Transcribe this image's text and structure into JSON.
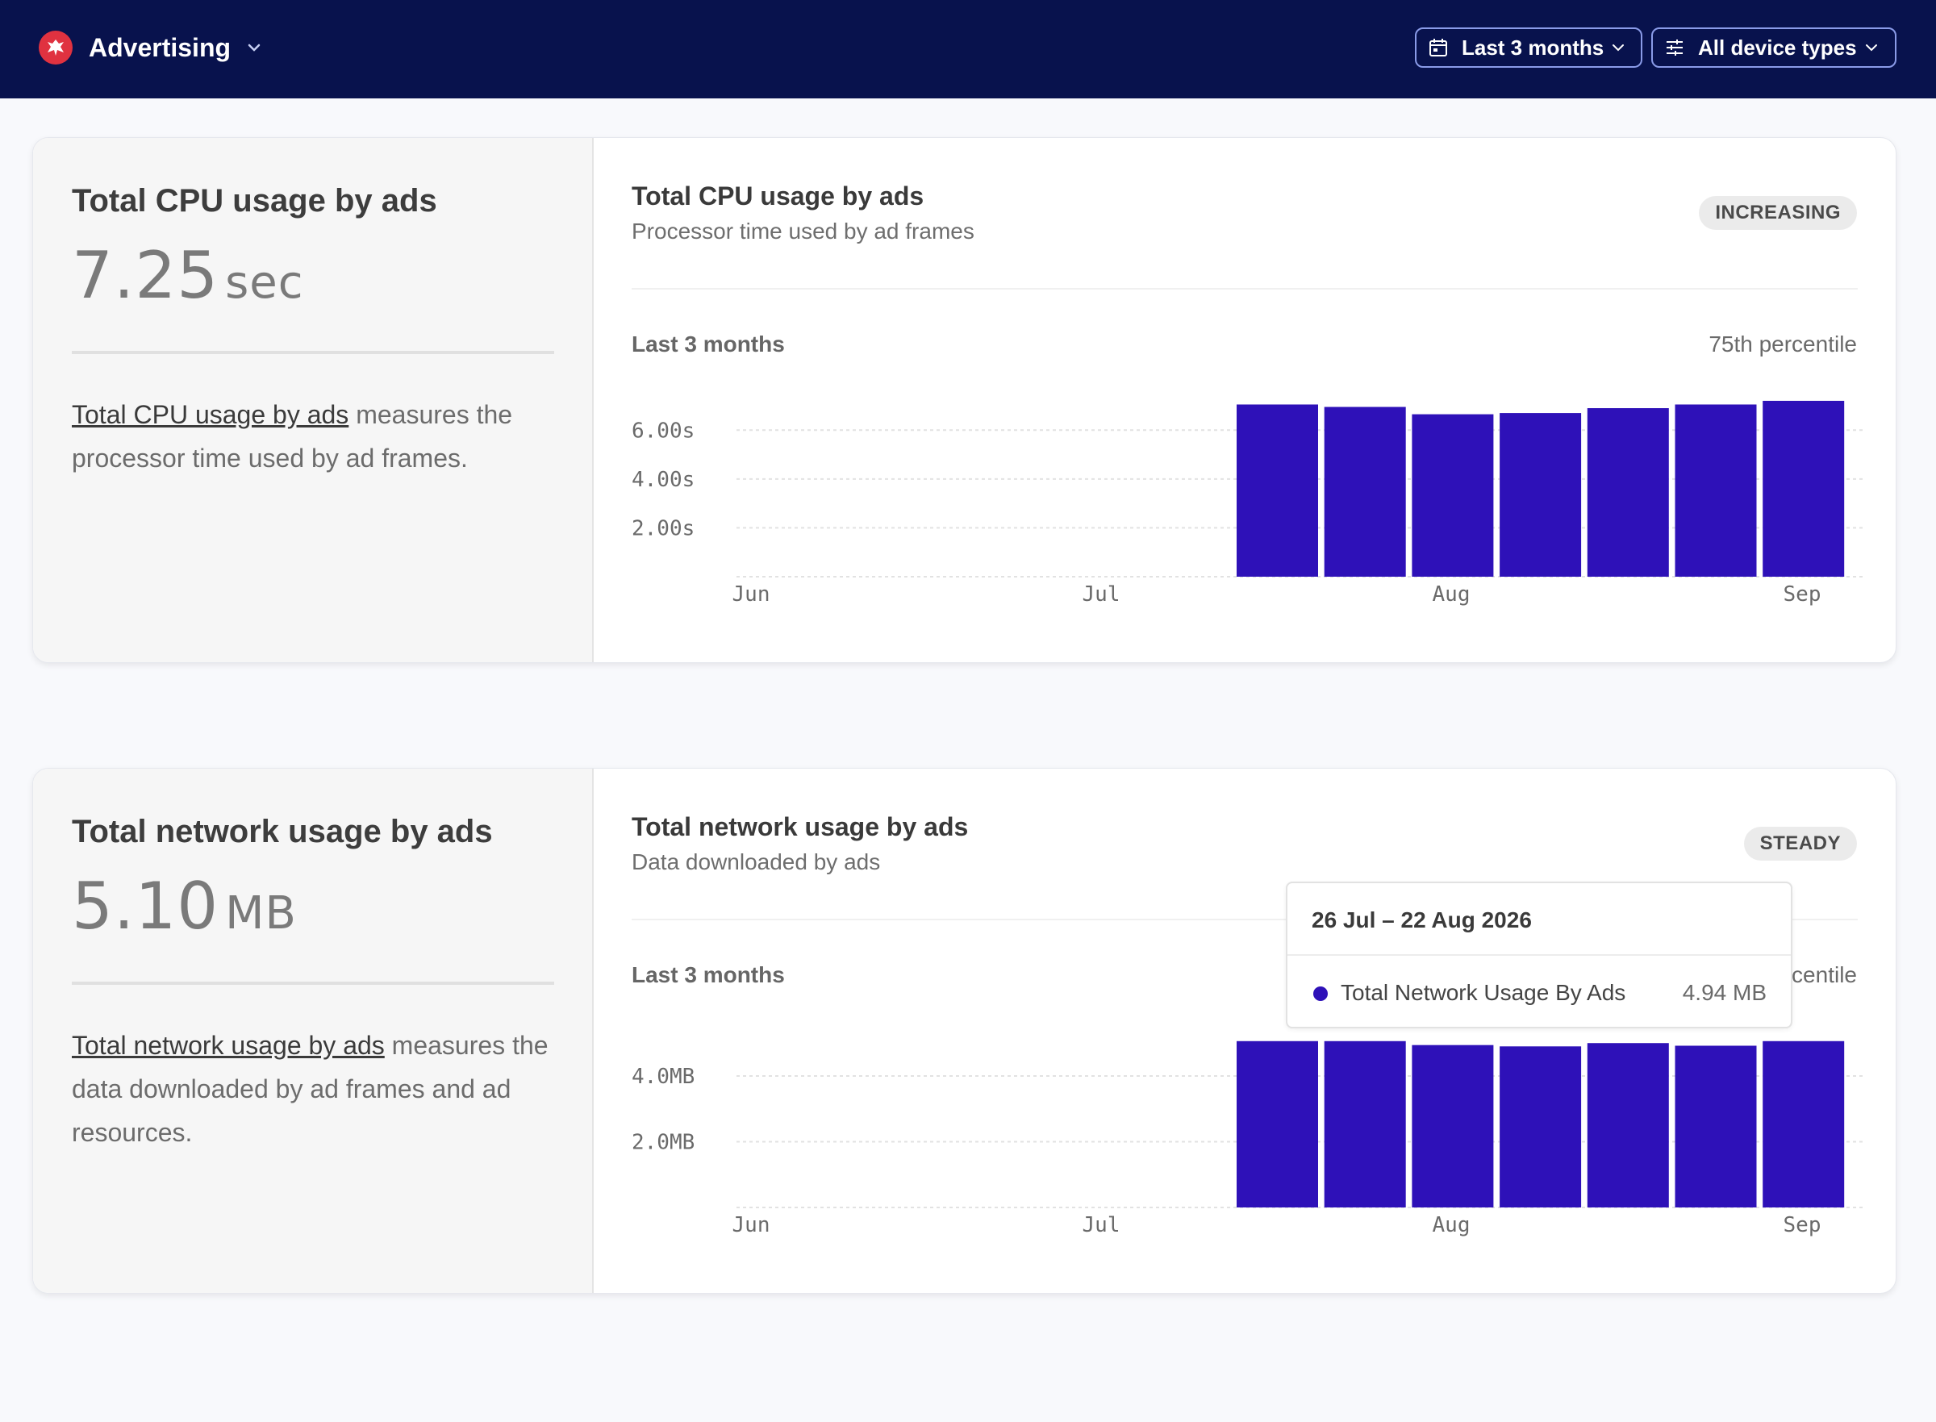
{
  "header": {
    "app_name": "Advertising",
    "logo_icon": "brand-logo-icon",
    "period_filter": "Last 3 months",
    "device_filter": "All device types",
    "background": "#08124d"
  },
  "cards": [
    {
      "summary": {
        "title": "Total CPU usage by ads",
        "value": "7.25",
        "unit": "sec",
        "desc_link": "Total CPU usage by ads",
        "desc_rest": " measures the processor time used by ad frames."
      },
      "chart": {
        "title": "Total CPU usage by ads",
        "subtitle": "Processor time used by ad frames",
        "trend": "INCREASING",
        "range": "Last 3 months",
        "percentile": "75th percentile"
      }
    },
    {
      "summary": {
        "title": "Total network usage by ads",
        "value": "5.10",
        "unit": "MB",
        "desc_link": "Total network usage by ads",
        "desc_rest": " measures the data downloaded by ad frames and ad resources."
      },
      "chart": {
        "title": "Total network usage by ads",
        "subtitle": "Data downloaded by ads",
        "trend": "STEADY",
        "range": "Last 3 months",
        "percentile": "75th percentile"
      }
    }
  ],
  "tooltip": {
    "date_range": "26 Jul – 22 Aug 2026",
    "series": "Total Network Usage By Ads",
    "value": "4.94 MB"
  },
  "chart_data": [
    {
      "type": "bar",
      "x_ticks": [
        "Jun",
        "Jul",
        "Aug",
        "Sep"
      ],
      "y_ticks": [
        "2.00s",
        "4.00s",
        "6.00s"
      ],
      "y_tick_values": [
        2,
        4,
        6
      ],
      "ylim": [
        0,
        7
      ],
      "unit": "s",
      "values": [
        7.05,
        6.95,
        6.65,
        6.7,
        6.9,
        7.05,
        7.2
      ],
      "color": "#2e11b8",
      "grid": true
    },
    {
      "type": "bar",
      "x_ticks": [
        "Jun",
        "Jul",
        "Aug",
        "Sep"
      ],
      "y_ticks": [
        "2.0MB",
        "4.0MB"
      ],
      "y_tick_values": [
        2,
        4
      ],
      "ylim": [
        0,
        5.3
      ],
      "unit": "MB",
      "values": [
        5.06,
        5.06,
        4.94,
        4.9,
        5.0,
        4.92,
        5.06
      ],
      "color": "#2e11b8",
      "grid": true
    }
  ]
}
